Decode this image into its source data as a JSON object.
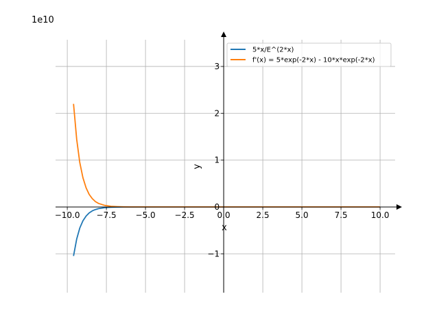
{
  "chart_data": {
    "type": "line",
    "title": "",
    "xlabel": "x",
    "ylabel": "y",
    "y_offset_label": "1e10",
    "xlim": [
      -10.75,
      10.96
    ],
    "ylim": [
      -1.83,
      3.57
    ],
    "grid": true,
    "legend_placement": "top-right",
    "xticks": [
      -10,
      -7.5,
      -5,
      -2.5,
      0,
      2.5,
      5,
      7.5,
      10
    ],
    "xtick_labels": [
      "−10.0",
      "−7.5",
      "−5.0",
      "−2.5",
      "0.0",
      "2.5",
      "5.0",
      "7.5",
      "10.0"
    ],
    "yticks": [
      -1,
      0,
      1,
      2,
      3
    ],
    "ytick_labels": [
      "−1",
      "0",
      "1",
      "2",
      "3"
    ],
    "series": [
      {
        "name": "5*x/E^(2*x)",
        "color": "#1f77b4",
        "x": [
          -9.6,
          -9.4,
          -9.2,
          -9.0,
          -8.8,
          -8.6,
          -8.4,
          -8.2,
          -8.0,
          -7.6,
          -7.2,
          -6.8,
          -6.4,
          -6.0,
          -4,
          -2,
          0,
          2,
          5,
          10
        ],
        "y": [
          -1.0455,
          -0.6862,
          -0.4502,
          -0.2955,
          -0.1935,
          -0.1268,
          -0.083,
          -0.0543,
          -0.0355,
          -0.0152,
          -0.0065,
          -0.0027,
          -0.0012,
          -0.001,
          0,
          0,
          0,
          0,
          0,
          0
        ]
      },
      {
        "name": "f'(x) = 5*exp(-2*x) - 10*x*exp(-2*x)",
        "color": "#ff7f0e",
        "x": [
          -9.6,
          -9.4,
          -9.2,
          -9.0,
          -8.8,
          -8.6,
          -8.4,
          -8.2,
          -8.0,
          -7.6,
          -7.2,
          -6.8,
          -6.4,
          -6.0,
          -4,
          -2,
          0,
          2,
          5,
          10
        ],
        "y": [
          2.1998,
          1.4454,
          0.9493,
          0.6238,
          0.409,
          0.2683,
          0.1759,
          0.1153,
          0.0755,
          0.0323,
          0.0138,
          0.0059,
          0.0025,
          0.0011,
          0,
          0,
          0,
          0,
          0,
          0
        ]
      }
    ]
  }
}
